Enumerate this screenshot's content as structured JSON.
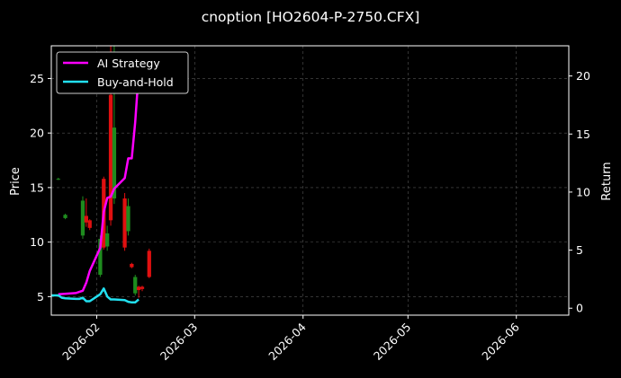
{
  "chart_data": {
    "type": "line",
    "title": "cnoption [HO2604-P-2750.CFX]",
    "ylabel_left": "Price",
    "ylabel_right": "Return",
    "x_range": [
      "2026-01-19",
      "2026-06-16"
    ],
    "ylim_left": [
      3.3,
      28.0
    ],
    "ylim_right": [
      -0.6,
      22.6
    ],
    "x_ticks": [
      "2026-02-01",
      "2026-03-01",
      "2026-04-01",
      "2026-05-01",
      "2026-06-01"
    ],
    "x_tick_labels": [
      "2026-02",
      "2026-03",
      "2026-04",
      "2026-05",
      "2026-06"
    ],
    "y_ticks_left": [
      5,
      10,
      15,
      20,
      25
    ],
    "y_ticks_right": [
      0,
      5,
      10,
      15,
      20
    ],
    "grid": true,
    "legend_position": "top-left",
    "colors": {
      "background": "#000000",
      "strategy": "#ff00ff",
      "buyhold": "#22e0f0",
      "up": "#1e8c1e",
      "down": "#e01010",
      "grid": "#555555"
    },
    "series": [
      {
        "name": "AI Strategy",
        "axis": "right",
        "x": [
          "2026-01-21",
          "2026-01-26",
          "2026-01-27",
          "2026-01-28",
          "2026-01-29",
          "2026-01-30",
          "2026-02-02",
          "2026-02-03",
          "2026-02-04",
          "2026-02-05",
          "2026-02-06",
          "2026-02-09",
          "2026-02-10",
          "2026-02-11",
          "2026-02-12",
          "2026-02-13"
        ],
        "values": [
          1.2,
          1.3,
          1.4,
          1.5,
          2.2,
          3.2,
          5.2,
          8.3,
          9.5,
          9.6,
          10.3,
          11.2,
          12.9,
          12.9,
          16.0,
          20.3
        ]
      },
      {
        "name": "Buy-and-Hold",
        "axis": "right",
        "x": [
          "2026-01-19",
          "2026-01-21",
          "2026-01-22",
          "2026-01-23",
          "2026-01-26",
          "2026-01-27",
          "2026-01-28",
          "2026-01-29",
          "2026-01-30",
          "2026-02-02",
          "2026-02-03",
          "2026-02-04",
          "2026-02-05",
          "2026-02-06",
          "2026-02-09",
          "2026-02-10",
          "2026-02-11",
          "2026-02-12",
          "2026-02-13"
        ],
        "values": [
          1.1,
          1.1,
          0.9,
          0.85,
          0.8,
          0.8,
          0.9,
          0.6,
          0.6,
          1.2,
          1.7,
          1.0,
          0.75,
          0.75,
          0.7,
          0.55,
          0.5,
          0.5,
          0.75
        ]
      }
    ],
    "candles": [
      {
        "x": "2026-01-21",
        "open": 15.8,
        "close": 15.8,
        "high": 15.9,
        "low": 15.7
      },
      {
        "x": "2026-01-23",
        "open": 12.2,
        "close": 12.5,
        "high": 12.6,
        "low": 12.1
      },
      {
        "x": "2026-01-28",
        "open": 10.6,
        "close": 13.8,
        "high": 14.2,
        "low": 10.3
      },
      {
        "x": "2026-01-29",
        "open": 12.4,
        "close": 11.8,
        "high": 14.0,
        "low": 11.4
      },
      {
        "x": "2026-01-30",
        "open": 12.0,
        "close": 11.3,
        "high": 12.1,
        "low": 11.1
      },
      {
        "x": "2026-02-02",
        "open": 7.0,
        "close": 10.3,
        "high": 10.6,
        "low": 6.8
      },
      {
        "x": "2026-02-03",
        "open": 15.8,
        "close": 9.5,
        "high": 16.0,
        "low": 9.3
      },
      {
        "x": "2026-02-04",
        "open": 9.6,
        "close": 10.8,
        "high": 11.5,
        "low": 9.2
      },
      {
        "x": "2026-02-05",
        "open": 23.5,
        "close": 12.0,
        "high": 28.0,
        "low": 11.5
      },
      {
        "x": "2026-02-06",
        "open": 14.0,
        "close": 20.5,
        "high": 28.0,
        "low": 13.5
      },
      {
        "x": "2026-02-09",
        "open": 14.0,
        "close": 9.5,
        "high": 14.5,
        "low": 9.2
      },
      {
        "x": "2026-02-10",
        "open": 11.0,
        "close": 13.3,
        "high": 14.0,
        "low": 10.6
      },
      {
        "x": "2026-02-11",
        "open": 8.0,
        "close": 7.7,
        "high": 8.1,
        "low": 7.6
      },
      {
        "x": "2026-02-12",
        "open": 5.3,
        "close": 6.8,
        "high": 7.0,
        "low": 5.1
      },
      {
        "x": "2026-02-13",
        "open": 5.9,
        "close": 5.6,
        "high": 6.0,
        "low": 4.9
      },
      {
        "x": "2026-02-14",
        "open": 5.9,
        "close": 5.7,
        "high": 6.0,
        "low": 5.5
      },
      {
        "x": "2026-02-16",
        "open": 9.2,
        "close": 6.8,
        "high": 9.4,
        "low": 6.7
      }
    ]
  }
}
